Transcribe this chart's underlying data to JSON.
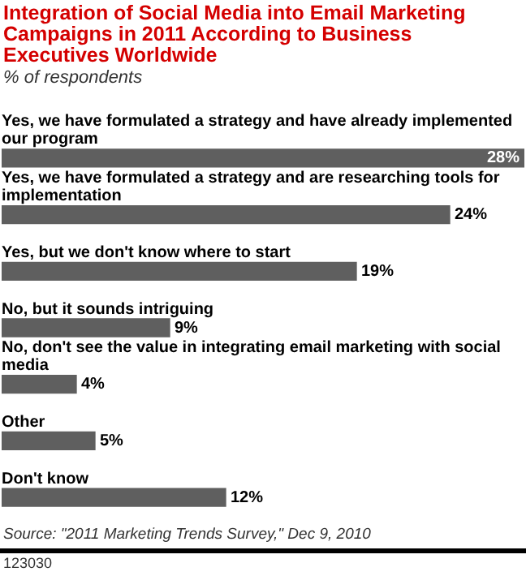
{
  "chart_data": {
    "type": "bar",
    "orientation": "horizontal",
    "title": "Integration of Social Media into Email Marketing Campaigns in 2011 According to Business Executives Worldwide",
    "subtitle": "% of respondents",
    "categories": [
      "Yes, we have formulated a strategy and have already implemented our program",
      "Yes, we have formulated a strategy and are researching tools for implementation",
      "Yes, but we don't know where to start",
      "No, but it sounds intriguing",
      "No, don't see the value in integrating email marketing with social media",
      "Other",
      "Don't know"
    ],
    "values": [
      28,
      24,
      19,
      9,
      4,
      5,
      12
    ],
    "value_labels": [
      "28%",
      "24%",
      "19%",
      "9%",
      "4%",
      "5%",
      "12%"
    ],
    "color": "#5f5f5f",
    "annotations": [
      "Source: \"2011 Marketing Trends Survey,\" Dec 9, 2010",
      "123030"
    ]
  }
}
